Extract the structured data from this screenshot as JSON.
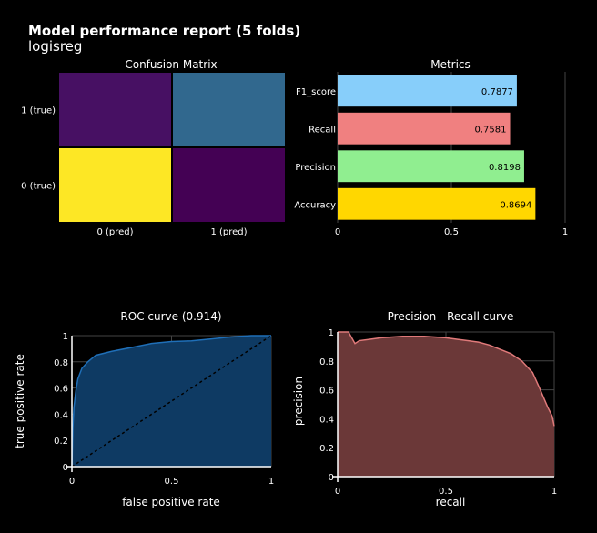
{
  "report": {
    "title": "Model performance report (5 folds)",
    "subtitle": "logisreg"
  },
  "colors": {
    "background": "#000000",
    "text": "#ffffff",
    "grid": "#444444",
    "f1": "#87cefa",
    "recall": "#f08080",
    "precision": "#90ee90",
    "accuracy": "#ffd700",
    "roc_fill": "#0e3a63",
    "roc_line": "#1f6fb8",
    "pr_fill": "#6b3838",
    "pr_line": "#e07a7a",
    "cm_dark": "#440154",
    "cm_mid": "#471063",
    "cm_teal": "#31688e",
    "cm_yellow": "#fde725"
  },
  "chart_data": [
    {
      "type": "heatmap",
      "title": "Confusion Matrix",
      "x_categories": [
        "0 (pred)",
        "1 (pred)"
      ],
      "y_categories": [
        "0 (true)",
        "1 (true)"
      ],
      "cells": [
        {
          "x": "0 (pred)",
          "y": "1 (true)",
          "level": 0.1
        },
        {
          "x": "1 (pred)",
          "y": "1 (true)",
          "level": 0.35
        },
        {
          "x": "0 (pred)",
          "y": "0 (true)",
          "level": 1.0
        },
        {
          "x": "1 (pred)",
          "y": "0 (true)",
          "level": 0.0
        }
      ]
    },
    {
      "type": "bar",
      "orientation": "horizontal",
      "title": "Metrics",
      "categories": [
        "F1_score",
        "Recall",
        "Precision",
        "Accuracy"
      ],
      "values": [
        0.7877,
        0.7581,
        0.8198,
        0.8694
      ],
      "labels": [
        "0.7877",
        "0.7581",
        "0.8198",
        "0.8694"
      ],
      "xlim": [
        0,
        1
      ],
      "xticks": [
        "0",
        "0.5",
        "1"
      ]
    },
    {
      "type": "area",
      "title": "ROC curve (0.914)",
      "xlabel": "false positive rate",
      "ylabel": "true positive rate",
      "xlim": [
        0,
        1
      ],
      "ylim": [
        0,
        1
      ],
      "xticks": [
        "0",
        "0.5",
        "1"
      ],
      "yticks": [
        "0",
        "0.2",
        "0.4",
        "0.6",
        "0.8",
        "1"
      ],
      "x": [
        0,
        0.005,
        0.01,
        0.02,
        0.03,
        0.05,
        0.08,
        0.12,
        0.2,
        0.3,
        0.4,
        0.5,
        0.6,
        0.7,
        0.8,
        0.9,
        1.0
      ],
      "y": [
        0,
        0.3,
        0.45,
        0.58,
        0.67,
        0.75,
        0.8,
        0.85,
        0.88,
        0.91,
        0.94,
        0.955,
        0.96,
        0.975,
        0.99,
        1.0,
        1.0
      ],
      "diagonal": true
    },
    {
      "type": "area",
      "title": "Precision - Recall curve",
      "xlabel": "recall",
      "ylabel": "precision",
      "xlim": [
        0,
        1
      ],
      "ylim": [
        0,
        1
      ],
      "xticks": [
        "0",
        "0.5",
        "1"
      ],
      "yticks": [
        "0",
        "0.2",
        "0.4",
        "0.6",
        "0.8",
        "1"
      ],
      "x": [
        0,
        0.02,
        0.05,
        0.08,
        0.1,
        0.15,
        0.2,
        0.3,
        0.4,
        0.5,
        0.55,
        0.6,
        0.65,
        0.7,
        0.75,
        0.8,
        0.85,
        0.9,
        0.93,
        0.95,
        0.97,
        0.99,
        1.0
      ],
      "y": [
        1.0,
        1.0,
        1.0,
        0.92,
        0.94,
        0.95,
        0.96,
        0.97,
        0.97,
        0.96,
        0.95,
        0.94,
        0.93,
        0.91,
        0.88,
        0.85,
        0.8,
        0.72,
        0.62,
        0.55,
        0.48,
        0.42,
        0.35
      ]
    }
  ]
}
